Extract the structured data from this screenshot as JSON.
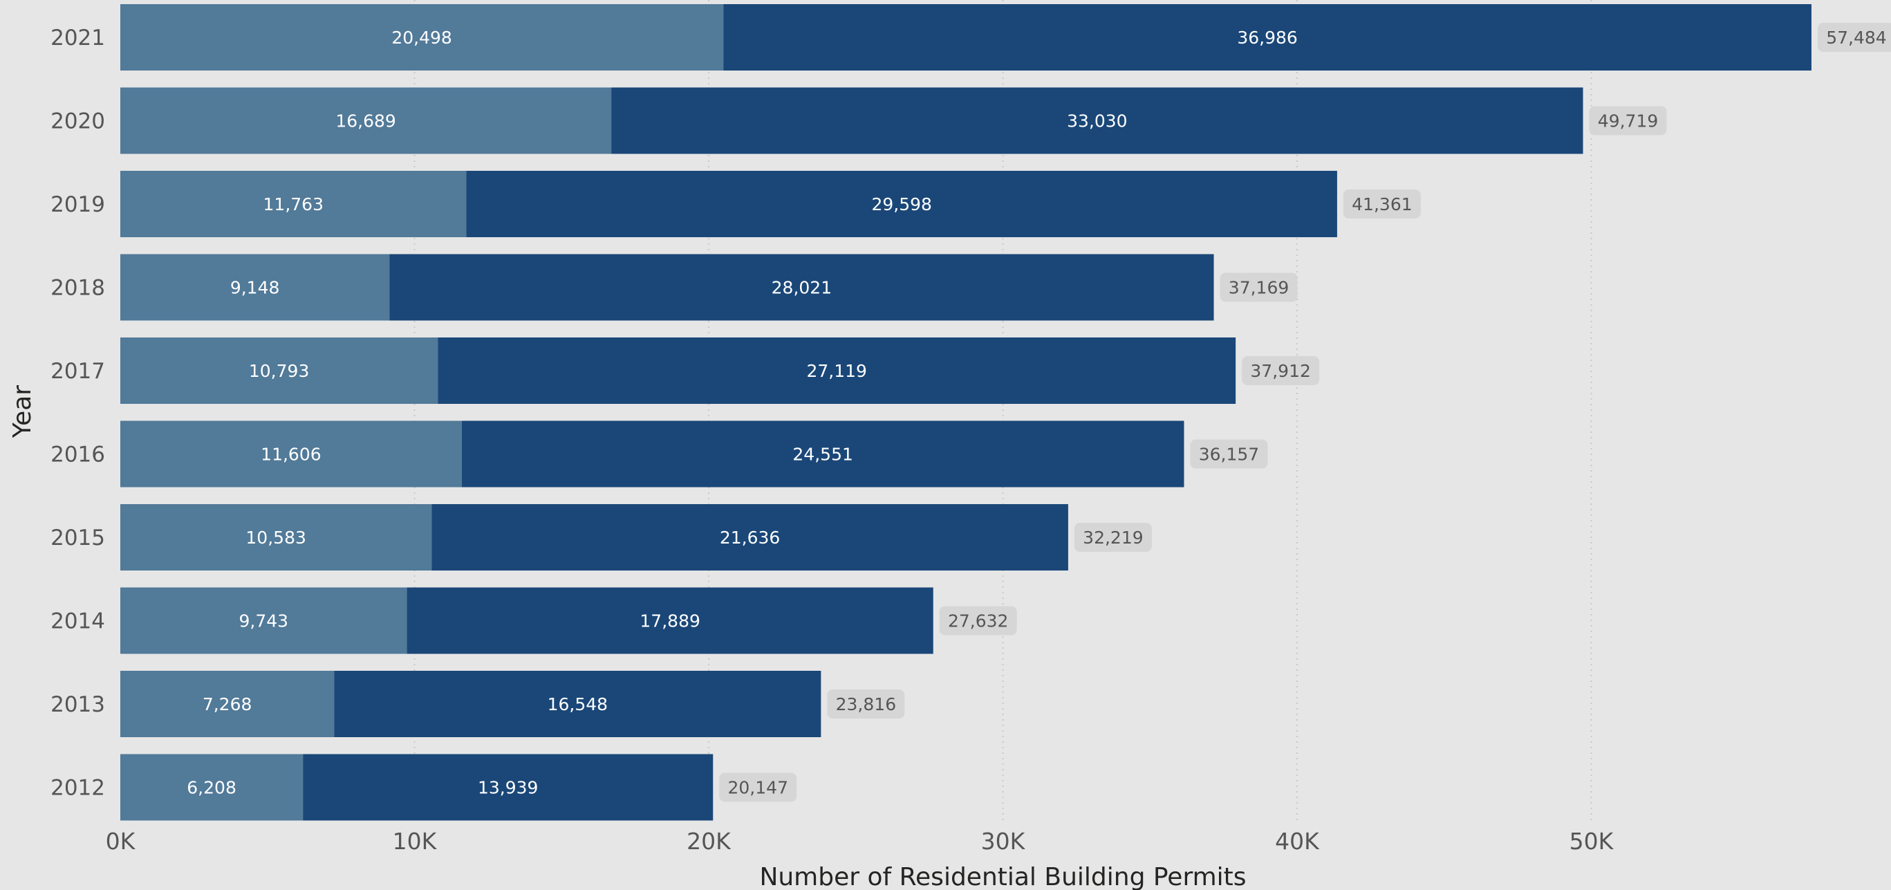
{
  "chart_data": {
    "type": "bar",
    "orientation": "horizontal",
    "stacked": true,
    "title": "",
    "xlabel": "Number of Residential Building Permits",
    "ylabel": "Year",
    "categories": [
      "2021",
      "2020",
      "2019",
      "2018",
      "2017",
      "2016",
      "2015",
      "2014",
      "2013",
      "2012"
    ],
    "series": [
      {
        "values": [
          20498,
          16689,
          11763,
          9148,
          10793,
          11606,
          10583,
          9743,
          7268,
          6208
        ],
        "color": "#527a99"
      },
      {
        "values": [
          36986,
          33030,
          29598,
          28021,
          27119,
          24551,
          21636,
          17889,
          16548,
          13939
        ],
        "color": "#1a4778"
      }
    ],
    "totals": [
      57484,
      49719,
      41361,
      37169,
      37912,
      36157,
      32219,
      27632,
      23816,
      20147
    ],
    "value_labels": {
      "segments": [
        [
          "20,498",
          "16,689",
          "11,763",
          "9,148",
          "10,793",
          "11,606",
          "10,583",
          "9,743",
          "7,268",
          "6,208"
        ],
        [
          "36,986",
          "33,030",
          "29,598",
          "28,021",
          "27,119",
          "24,551",
          "21,636",
          "17,889",
          "16,548",
          "13,939"
        ]
      ],
      "totals": [
        "57,484",
        "49,719",
        "41,361",
        "37,169",
        "37,912",
        "36,157",
        "32,219",
        "27,632",
        "23,816",
        "20,147"
      ]
    },
    "x_ticks": [
      0,
      10000,
      20000,
      30000,
      40000,
      50000
    ],
    "x_tick_labels": [
      "0K",
      "10K",
      "20K",
      "30K",
      "40K",
      "50K"
    ],
    "xlim": [
      0,
      60000
    ],
    "grid": "vertical-dotted",
    "legend": "none",
    "colors": {
      "background": "#e6e6e6",
      "gridline": "#c8c8c8",
      "total_badge": "#d6d6d6"
    }
  }
}
